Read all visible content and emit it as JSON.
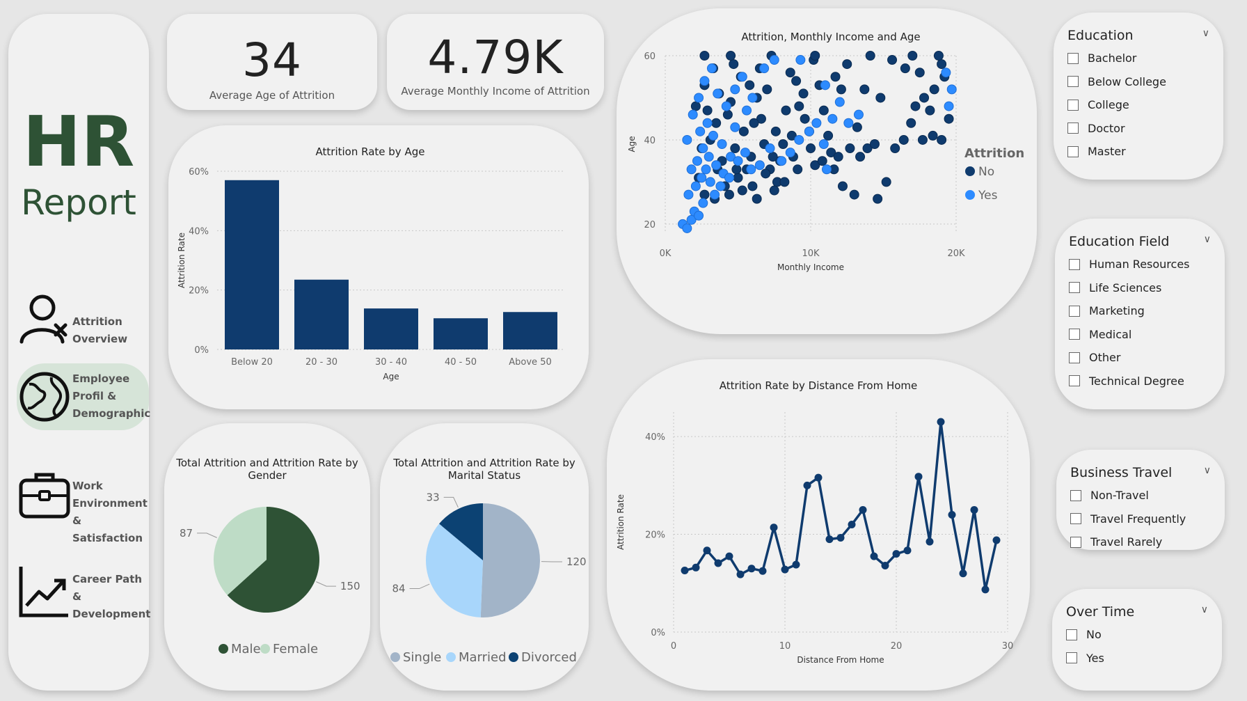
{
  "sidebar": {
    "title": "HR",
    "subtitle": "Report",
    "nav": [
      {
        "line1": "Attrition",
        "line2": "Overview",
        "line3": "",
        "icon": "user-x-icon"
      },
      {
        "line1": "Employee",
        "line2": "Profil &",
        "line3": "Demographic",
        "icon": "globe-icon"
      },
      {
        "line1": "Work",
        "line2": "Environment &",
        "line3": "Satisfaction",
        "icon": "briefcase-icon"
      },
      {
        "line1": "Career Path &",
        "line2": "Development",
        "line3": "",
        "icon": "growth-chart-icon"
      }
    ]
  },
  "kpis": [
    {
      "value": "34",
      "label": "Average Age of Attrition"
    },
    {
      "value": "4.79K",
      "label": "Average Monthly Income of Attrition"
    }
  ],
  "slicers": [
    {
      "title": "Education",
      "items": [
        "Bachelor",
        "Below College",
        "College",
        "Doctor",
        "Master"
      ]
    },
    {
      "title": "Education Field",
      "items": [
        "Human Resources",
        "Life Sciences",
        "Marketing",
        "Medical",
        "Other",
        "Technical Degree"
      ]
    },
    {
      "title": "Business Travel",
      "items": [
        "Non-Travel",
        "Travel Frequently",
        "Travel Rarely"
      ]
    },
    {
      "title": "Over Time",
      "items": [
        "No",
        "Yes"
      ]
    }
  ],
  "colors": {
    "navy": "#0f3b6e",
    "bright_blue": "#2d8bff",
    "dark_green": "#2e5235",
    "light_green": "#bedcc6",
    "single": "#a2b4c8",
    "married": "#a8d6fb",
    "divorced": "#0c4273"
  },
  "chart_data": [
    {
      "id": "age",
      "type": "bar",
      "title": "Attrition Rate by Age",
      "xlabel": "Age",
      "ylabel": "Attrition Rate",
      "categories": [
        "Below 20",
        "20 - 30",
        "30 - 40",
        "40 - 50",
        "Above 50"
      ],
      "values": [
        57,
        23.5,
        13.8,
        10.5,
        12.6
      ],
      "ylim": [
        0,
        60
      ],
      "yticks": [
        "0%",
        "20%",
        "40%",
        "60%"
      ],
      "grid": true
    },
    {
      "id": "scatter",
      "type": "scatter",
      "title": "Attrition, Monthly Income and Age",
      "xlabel": "Monthly Income",
      "ylabel": "Age",
      "xlim": [
        0,
        20000
      ],
      "ylim": [
        18,
        60
      ],
      "xticks": [
        {
          "v": 0,
          "t": "0K"
        },
        {
          "v": 10000,
          "t": "10K"
        },
        {
          "v": 20000,
          "t": "20K"
        }
      ],
      "yticks": [
        {
          "v": 20,
          "t": "20"
        },
        {
          "v": 40,
          "t": "40"
        },
        {
          "v": 60,
          "t": "60"
        }
      ],
      "legend_title": "Attrition",
      "legend": [
        "No",
        "Yes"
      ],
      "legend_position": "right",
      "series": [
        {
          "name": "No",
          "points": [
            [
              19000,
              58
            ],
            [
              19200,
              55
            ],
            [
              18500,
              52
            ],
            [
              17800,
              50
            ],
            [
              18200,
              47
            ],
            [
              19500,
              45
            ],
            [
              16900,
              44
            ],
            [
              17200,
              48
            ],
            [
              17500,
              56
            ],
            [
              16500,
              57
            ],
            [
              15600,
              59
            ],
            [
              14800,
              50
            ],
            [
              13700,
              52
            ],
            [
              13900,
              38
            ],
            [
              15200,
              30
            ],
            [
              14600,
              26
            ],
            [
              12500,
              58
            ],
            [
              11700,
              55
            ],
            [
              12100,
              52
            ],
            [
              13200,
              43
            ],
            [
              11200,
              41
            ],
            [
              10200,
              59
            ],
            [
              10600,
              53
            ],
            [
              10900,
              47
            ],
            [
              11400,
              37
            ],
            [
              9600,
              45
            ],
            [
              9900,
              42
            ],
            [
              9200,
              48
            ],
            [
              9500,
              51
            ],
            [
              8600,
              56
            ],
            [
              9000,
              54
            ],
            [
              8300,
              47
            ],
            [
              8700,
              41
            ],
            [
              8100,
              39
            ],
            [
              7900,
              35
            ],
            [
              7600,
              42
            ],
            [
              7400,
              36
            ],
            [
              7700,
              30
            ],
            [
              7200,
              33
            ],
            [
              6800,
              39
            ],
            [
              7000,
              52
            ],
            [
              6500,
              57
            ],
            [
              6300,
              50
            ],
            [
              6600,
              45
            ],
            [
              6100,
              44
            ],
            [
              5800,
              53
            ],
            [
              5900,
              36
            ],
            [
              5600,
              33
            ],
            [
              5400,
              42
            ],
            [
              5200,
              55
            ],
            [
              5000,
              31
            ],
            [
              4800,
              38
            ],
            [
              4500,
              49
            ],
            [
              4700,
              58
            ],
            [
              4300,
              46
            ],
            [
              4100,
              29
            ],
            [
              3900,
              35
            ],
            [
              3700,
              51
            ],
            [
              3500,
              44
            ],
            [
              3300,
              57
            ],
            [
              3100,
              40
            ],
            [
              2900,
              47
            ],
            [
              2700,
              53
            ],
            [
              2500,
              38
            ],
            [
              2300,
              31
            ],
            [
              2100,
              48
            ],
            [
              2700,
              27
            ],
            [
              3400,
              26
            ],
            [
              4400,
              27
            ],
            [
              5300,
              28
            ],
            [
              6300,
              26
            ],
            [
              7500,
              28
            ],
            [
              8200,
              30
            ],
            [
              9100,
              33
            ],
            [
              10300,
              34
            ],
            [
              11600,
              33
            ],
            [
              12200,
              29
            ],
            [
              13000,
              27
            ],
            [
              19000,
              40
            ],
            [
              18400,
              41
            ],
            [
              17700,
              40
            ],
            [
              16400,
              40
            ],
            [
              15800,
              38
            ],
            [
              14400,
              39
            ],
            [
              13400,
              36
            ],
            [
              12700,
              38
            ],
            [
              11900,
              36
            ],
            [
              10800,
              35
            ],
            [
              10000,
              38
            ],
            [
              8800,
              36
            ],
            [
              6900,
              32
            ],
            [
              6000,
              29
            ],
            [
              4900,
              33
            ],
            [
              3600,
              33
            ],
            [
              18800,
              60
            ],
            [
              17000,
              60
            ],
            [
              14100,
              60
            ],
            [
              10300,
              60
            ],
            [
              7300,
              60
            ],
            [
              4500,
              60
            ],
            [
              2700,
              60
            ]
          ]
        },
        {
          "name": "Yes",
          "points": [
            [
              1200,
              20
            ],
            [
              1500,
              19
            ],
            [
              1800,
              21
            ],
            [
              2000,
              23
            ],
            [
              2300,
              22
            ],
            [
              2600,
              25
            ],
            [
              1600,
              27
            ],
            [
              2100,
              29
            ],
            [
              2500,
              31
            ],
            [
              2800,
              33
            ],
            [
              3100,
              30
            ],
            [
              3400,
              27
            ],
            [
              3800,
              29
            ],
            [
              2200,
              35
            ],
            [
              2600,
              38
            ],
            [
              3000,
              36
            ],
            [
              3500,
              34
            ],
            [
              4000,
              32
            ],
            [
              4400,
              31
            ],
            [
              2400,
              42
            ],
            [
              2900,
              44
            ],
            [
              3300,
              41
            ],
            [
              3900,
              39
            ],
            [
              4500,
              36
            ],
            [
              5000,
              35
            ],
            [
              5500,
              37
            ],
            [
              5900,
              33
            ],
            [
              6500,
              34
            ],
            [
              7200,
              38
            ],
            [
              8000,
              35
            ],
            [
              8600,
              37
            ],
            [
              9200,
              40
            ],
            [
              9900,
              42
            ],
            [
              10400,
              44
            ],
            [
              10900,
              39
            ],
            [
              11100,
              33
            ],
            [
              11500,
              45
            ],
            [
              12000,
              49
            ],
            [
              12600,
              44
            ],
            [
              13300,
              46
            ],
            [
              4200,
              48
            ],
            [
              4800,
              52
            ],
            [
              5300,
              55
            ],
            [
              6000,
              50
            ],
            [
              6800,
              57
            ],
            [
              7500,
              59
            ],
            [
              9300,
              59
            ],
            [
              11000,
              53
            ],
            [
              1900,
              46
            ],
            [
              2300,
              50
            ],
            [
              2700,
              54
            ],
            [
              3200,
              57
            ],
            [
              1500,
              40
            ],
            [
              1800,
              33
            ],
            [
              3600,
              51
            ],
            [
              19500,
              48
            ],
            [
              19700,
              52
            ],
            [
              19300,
              56
            ],
            [
              4800,
              43
            ],
            [
              5600,
              47
            ]
          ]
        }
      ]
    },
    {
      "id": "gender",
      "type": "pie",
      "title_line1": "Total Attrition and Attrition Rate by",
      "title_line2": "Gender",
      "slices": [
        {
          "name": "Male",
          "value": 150
        },
        {
          "name": "Female",
          "value": 87
        }
      ],
      "legend_position": "bottom"
    },
    {
      "id": "marital",
      "type": "pie",
      "title_line1": "Total Attrition and Attrition Rate by",
      "title_line2": "Marital Status",
      "slices": [
        {
          "name": "Single",
          "value": 120
        },
        {
          "name": "Married",
          "value": 84
        },
        {
          "name": "Divorced",
          "value": 33
        }
      ],
      "legend_position": "bottom"
    },
    {
      "id": "distance",
      "type": "line",
      "title": "Attrition Rate by Distance From Home",
      "xlabel": "Distance From Home",
      "ylabel": "Attrition Rate",
      "xlim": [
        0,
        30
      ],
      "ylim": [
        0,
        45
      ],
      "xticks": [
        "0",
        "10",
        "20",
        "30"
      ],
      "yticks": [
        "0%",
        "20%",
        "40%"
      ],
      "x": [
        1,
        2,
        3,
        4,
        5,
        6,
        7,
        8,
        9,
        10,
        11,
        12,
        13,
        14,
        15,
        16,
        17,
        18,
        19,
        20,
        21,
        22,
        23,
        24,
        25,
        26,
        27,
        28,
        29
      ],
      "values": [
        12.6,
        13.2,
        16.7,
        14.1,
        15.5,
        11.8,
        13.0,
        12.5,
        21.4,
        12.8,
        13.8,
        30.0,
        31.6,
        19.0,
        19.3,
        22.0,
        25.0,
        15.5,
        13.6,
        16.0,
        16.7,
        31.8,
        18.5,
        43.0,
        24.0,
        12.0,
        25.0,
        8.7,
        18.8
      ],
      "grid": true
    }
  ]
}
